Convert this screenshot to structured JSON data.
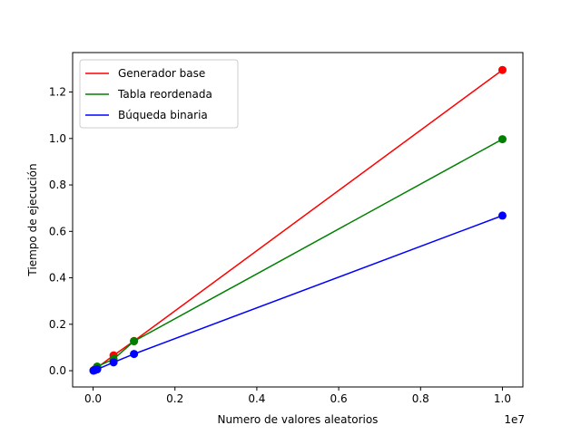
{
  "chart_data": {
    "type": "line",
    "xlabel": "Numero de valores aleatorios",
    "ylabel": "Tiempo de ejecución",
    "x_offset_label": "1e7",
    "xlim": [
      -0.05,
      1.05
    ],
    "ylim": [
      -0.07,
      1.37
    ],
    "x_ticks": [
      0.0,
      0.2,
      0.4,
      0.6,
      0.8,
      1.0
    ],
    "x_tick_labels": [
      "0.0",
      "0.2",
      "0.4",
      "0.6",
      "0.8",
      "1.0"
    ],
    "y_ticks": [
      0.0,
      0.2,
      0.4,
      0.6,
      0.8,
      1.0,
      1.2
    ],
    "y_tick_labels": [
      "0.0",
      "0.2",
      "0.4",
      "0.6",
      "0.8",
      "1.0",
      "1.2"
    ],
    "grid": false,
    "legend_position": "upper-left",
    "series": [
      {
        "name": "Generador base",
        "color": "#ff0000",
        "x": [
          0.001,
          0.005,
          0.01,
          0.05,
          0.1,
          1.0
        ],
        "y": [
          0.001,
          0.007,
          0.013,
          0.066,
          0.128,
          1.295
        ]
      },
      {
        "name": "Tabla reordenada",
        "color": "#008000",
        "x": [
          0.001,
          0.005,
          0.01,
          0.05,
          0.1,
          1.0
        ],
        "y": [
          0.001,
          0.005,
          0.018,
          0.05,
          0.127,
          0.997
        ]
      },
      {
        "name": "Búqueda binaria",
        "color": "#0000ff",
        "x": [
          0.001,
          0.005,
          0.01,
          0.05,
          0.1,
          1.0
        ],
        "y": [
          0.0005,
          0.003,
          0.006,
          0.036,
          0.072,
          0.668
        ]
      }
    ]
  }
}
